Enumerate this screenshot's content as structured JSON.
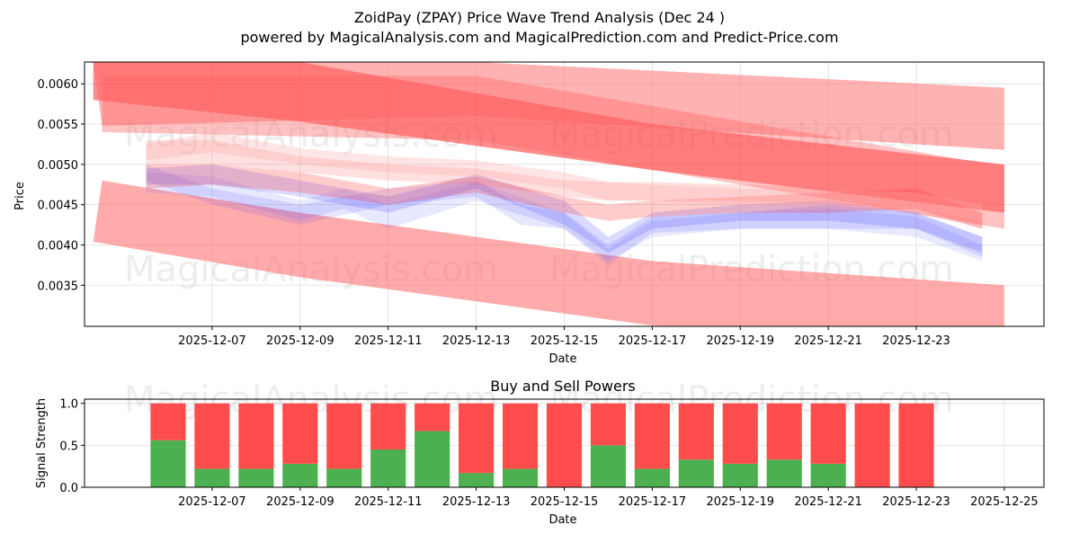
{
  "header": {
    "title": "ZoidPay (ZPAY) Price Wave Trend Analysis (Dec 24 )",
    "subtitle": "powered by MagicalAnalysis.com and MagicalPrediction.com and Predict-Price.com"
  },
  "watermarks": [
    "MagicalAnalysis.com",
    "MagicalPrediction.com"
  ],
  "colors": {
    "upper_band": "#ff0000",
    "lower_band": "#ff0000",
    "light_band": "#ff9999",
    "blue_wave": "#3333ff",
    "red_wave": "#ff3333",
    "buy": "#4caf50",
    "sell": "#ff4c4c",
    "grid": "#dddddd"
  },
  "chart_data": [
    {
      "type": "area",
      "title": "",
      "xlabel": "Date",
      "ylabel": "Price",
      "xlim": [
        -1.9,
        19.9
      ],
      "ylim": [
        0.00299,
        0.00627
      ],
      "x_tick_positions": [
        1,
        3,
        5,
        7,
        9,
        11,
        13,
        15,
        17
      ],
      "x_tick_labels": [
        "2025-12-07",
        "2025-12-09",
        "2025-12-11",
        "2025-12-13",
        "2025-12-15",
        "2025-12-17",
        "2025-12-19",
        "2025-12-21",
        "2025-12-23"
      ],
      "y_ticks": [
        0.0035,
        0.004,
        0.0045,
        0.005,
        0.0055,
        0.006
      ],
      "y_tick_labels": [
        "0.0035",
        "0.0040",
        "0.0045",
        "0.0050",
        "0.0055",
        "0.0060"
      ],
      "grid": true,
      "bands": [
        {
          "name": "upper-band-1",
          "color": "#ff0000",
          "opacity": 0.45,
          "top": [
            [
              -1.7,
              0.00627
            ],
            [
              3,
              0.00627
            ],
            [
              11,
              0.0055
            ],
            [
              19,
              0.005
            ]
          ],
          "bottom": [
            [
              -1.7,
              0.0058
            ],
            [
              3,
              0.00553
            ],
            [
              11,
              0.00493
            ],
            [
              19,
              0.0044
            ]
          ]
        },
        {
          "name": "upper-band-2",
          "color": "#ff6666",
          "opacity": 0.5,
          "top": [
            [
              -1.7,
              0.00627
            ],
            [
              7,
              0.00627
            ],
            [
              19,
              0.00595
            ]
          ],
          "bottom": [
            [
              -1.5,
              0.00548
            ],
            [
              7,
              0.0056
            ],
            [
              19,
              0.00518
            ]
          ]
        },
        {
          "name": "upper-band-3",
          "color": "#ff6666",
          "opacity": 0.4,
          "top": [
            [
              -1.5,
              0.0061
            ],
            [
              7,
              0.0061
            ],
            [
              19,
              0.00497
            ]
          ],
          "bottom": [
            [
              -1.5,
              0.0054
            ],
            [
              7,
              0.0053
            ],
            [
              19,
              0.0042
            ]
          ]
        },
        {
          "name": "lower-band",
          "color": "#ff6666",
          "opacity": 0.55,
          "top": [
            [
              -1.5,
              0.0048
            ],
            [
              3,
              0.0044
            ],
            [
              7,
              0.0041
            ],
            [
              11,
              0.0038
            ],
            [
              19,
              0.0035
            ]
          ],
          "bottom": [
            [
              -1.7,
              0.00404
            ],
            [
              3,
              0.0036
            ],
            [
              7,
              0.0033
            ],
            [
              11,
              0.003
            ],
            [
              19,
              0.0027
            ]
          ]
        }
      ],
      "series": [
        {
          "name": "blue-wave-1",
          "color": "#3333ff",
          "opacity": 0.18,
          "x": [
            -0.5,
            1,
            3,
            5,
            7,
            9,
            10,
            11,
            13,
            15,
            17,
            18.5
          ],
          "upper": [
            0.00495,
            0.005,
            0.0048,
            0.0046,
            0.00488,
            0.00455,
            0.0041,
            0.0044,
            0.0045,
            0.00455,
            0.0044,
            0.0041
          ],
          "lower": [
            0.00475,
            0.00475,
            0.0046,
            0.0044,
            0.0047,
            0.00425,
            0.0039,
            0.0042,
            0.0043,
            0.0043,
            0.0042,
            0.0039
          ]
        },
        {
          "name": "blue-wave-2",
          "color": "#6666ff",
          "opacity": 0.15,
          "x": [
            -0.5,
            1,
            3,
            4,
            5,
            7,
            9,
            10,
            11,
            13,
            15,
            17,
            18.5
          ],
          "upper": [
            0.0049,
            0.00485,
            0.00455,
            0.0047,
            0.0045,
            0.00478,
            0.0044,
            0.00395,
            0.0043,
            0.0044,
            0.00445,
            0.00435,
            0.004
          ],
          "lower": [
            0.00465,
            0.0046,
            0.0043,
            0.00445,
            0.0042,
            0.00455,
            0.0042,
            0.0038,
            0.0041,
            0.0042,
            0.0042,
            0.0041,
            0.0038
          ]
        },
        {
          "name": "blue-wave-3",
          "color": "#3333ff",
          "opacity": 0.12,
          "x": [
            -0.5,
            1,
            3,
            5,
            7,
            8,
            9,
            10,
            11,
            13,
            15,
            17,
            18.5
          ],
          "upper": [
            0.005,
            0.0047,
            0.0045,
            0.0047,
            0.0048,
            0.0045,
            0.0044,
            0.004,
            0.00435,
            0.0044,
            0.0045,
            0.0044,
            0.0041
          ],
          "lower": [
            0.0048,
            0.0045,
            0.00425,
            0.0045,
            0.0046,
            0.00425,
            0.0042,
            0.00375,
            0.00415,
            0.0042,
            0.0042,
            0.0042,
            0.00385
          ]
        },
        {
          "name": "red-wave-1",
          "color": "#ff3333",
          "opacity": 0.25,
          "x": [
            -0.5,
            1,
            3,
            5,
            7,
            9,
            10,
            11,
            13,
            15,
            17,
            18.5
          ],
          "upper": [
            0.005,
            0.005,
            0.0049,
            0.0047,
            0.00485,
            0.0046,
            0.0045,
            0.00455,
            0.0046,
            0.00465,
            0.0047,
            0.0044
          ],
          "lower": [
            0.0047,
            0.00475,
            0.00465,
            0.0045,
            0.00465,
            0.0044,
            0.0043,
            0.00435,
            0.0044,
            0.0044,
            0.00445,
            0.0042
          ]
        },
        {
          "name": "red-wave-2",
          "color": "#ff6666",
          "opacity": 0.2,
          "x": [
            -0.5,
            1,
            3,
            5,
            7,
            9,
            10,
            11,
            13,
            15,
            17,
            18.5
          ],
          "upper": [
            0.0053,
            0.0053,
            0.0051,
            0.005,
            0.00495,
            0.0048,
            0.00478,
            0.00478,
            0.00475,
            0.0047,
            0.0046,
            0.0044
          ],
          "lower": [
            0.005,
            0.005,
            0.0049,
            0.0048,
            0.00475,
            0.0046,
            0.00455,
            0.00455,
            0.00455,
            0.0045,
            0.0044,
            0.0042
          ]
        },
        {
          "name": "red-wave-3",
          "color": "#ffaaaa",
          "opacity": 0.3,
          "x": [
            -0.5,
            1,
            3,
            5,
            7,
            9,
            10,
            11,
            13,
            15,
            17,
            18.5
          ],
          "upper": [
            0.00525,
            0.0054,
            0.0052,
            0.0051,
            0.00505,
            0.0049,
            0.00478,
            0.00475,
            0.0047,
            0.00468,
            0.00465,
            0.0045
          ],
          "lower": [
            0.00505,
            0.00515,
            0.005,
            0.0049,
            0.00485,
            0.0047,
            0.00455,
            0.00455,
            0.0045,
            0.00448,
            0.00445,
            0.0043
          ]
        }
      ]
    },
    {
      "type": "bar",
      "title": "Buy and Sell Powers",
      "xlabel": "Date",
      "ylabel": "Signal Strength",
      "xlim": [
        -1.9,
        19.9
      ],
      "ylim": [
        0,
        1.05
      ],
      "x_tick_positions": [
        1,
        3,
        5,
        7,
        9,
        11,
        13,
        15,
        17,
        19
      ],
      "x_tick_labels": [
        "2025-12-07",
        "2025-12-09",
        "2025-12-11",
        "2025-12-13",
        "2025-12-15",
        "2025-12-17",
        "2025-12-19",
        "2025-12-21",
        "2025-12-23",
        "2025-12-25"
      ],
      "y_ticks": [
        0,
        0.5,
        1
      ],
      "y_tick_labels": [
        "0.0",
        "0.5",
        "1.0"
      ],
      "grid": true,
      "x": [
        0,
        1,
        2,
        3,
        4,
        5,
        6,
        7,
        8,
        9,
        10,
        11,
        12,
        13,
        14,
        15,
        16,
        17
      ],
      "series": [
        {
          "name": "Buy",
          "color": "#4caf50",
          "values": [
            0.56,
            0.22,
            0.22,
            0.28,
            0.22,
            0.45,
            0.67,
            0.17,
            0.22,
            0.0,
            0.5,
            0.22,
            0.33,
            0.28,
            0.33,
            0.28,
            0.0,
            0.0
          ]
        },
        {
          "name": "Sell",
          "color": "#ff4c4c",
          "values": [
            0.44,
            0.78,
            0.78,
            0.72,
            0.78,
            0.55,
            0.33,
            0.83,
            0.78,
            1.0,
            0.5,
            0.78,
            0.67,
            0.72,
            0.67,
            0.72,
            1.0,
            1.0
          ]
        }
      ]
    }
  ]
}
